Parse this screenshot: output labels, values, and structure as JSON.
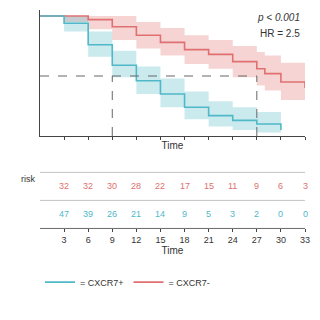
{
  "chart_data": {
    "type": "line",
    "line_style": "step",
    "xlabel": "Time",
    "xlim": [
      0,
      33
    ],
    "ylim": [
      0,
      1.05
    ],
    "xticks": [
      3,
      6,
      9,
      12,
      15,
      18,
      21,
      24,
      27,
      30,
      33
    ],
    "yticks": [],
    "tick_labels": "x",
    "grid": false,
    "legend": "lower left",
    "annotations": [
      "p < 0.001",
      "HR = 2.5"
    ],
    "median_y": 0.5,
    "median_x": [
      9,
      27
    ],
    "series": [
      {
        "name": "= CXCR7-",
        "color": "#E07070",
        "x": [
          0,
          3,
          6,
          9,
          12,
          15,
          18,
          21,
          24,
          27,
          28,
          30,
          33
        ],
        "values": [
          1.0,
          1.0,
          0.97,
          0.91,
          0.84,
          0.78,
          0.72,
          0.68,
          0.62,
          0.56,
          0.52,
          0.45,
          0.4
        ],
        "lower": [
          1.0,
          0.95,
          0.89,
          0.8,
          0.73,
          0.67,
          0.6,
          0.56,
          0.49,
          0.42,
          0.38,
          0.3,
          0.22
        ],
        "upper": [
          1.0,
          1.0,
          1.0,
          1.0,
          0.95,
          0.9,
          0.84,
          0.8,
          0.75,
          0.7,
          0.67,
          0.61,
          0.58
        ]
      },
      {
        "name": "= CXCR7+",
        "color": "#50B8C8",
        "x": [
          0,
          3,
          6,
          9,
          12,
          15,
          18,
          21,
          24,
          27,
          30
        ],
        "values": [
          1.0,
          0.94,
          0.76,
          0.59,
          0.46,
          0.35,
          0.24,
          0.17,
          0.13,
          0.1,
          0.05
        ],
        "lower": [
          1.0,
          0.87,
          0.66,
          0.49,
          0.35,
          0.24,
          0.14,
          0.08,
          0.05,
          0.03,
          0.01
        ],
        "upper": [
          1.0,
          1.0,
          0.87,
          0.71,
          0.58,
          0.48,
          0.37,
          0.29,
          0.24,
          0.2,
          0.14
        ]
      }
    ],
    "risk_table": {
      "label": "risk",
      "x": [
        3,
        6,
        9,
        12,
        15,
        18,
        21,
        24,
        27,
        30,
        33
      ],
      "rows": [
        [
          32,
          32,
          30,
          28,
          22,
          17,
          15,
          11,
          9,
          6,
          3
        ],
        [
          47,
          39,
          26,
          21,
          14,
          9,
          5,
          3,
          2,
          0,
          0
        ]
      ]
    }
  }
}
